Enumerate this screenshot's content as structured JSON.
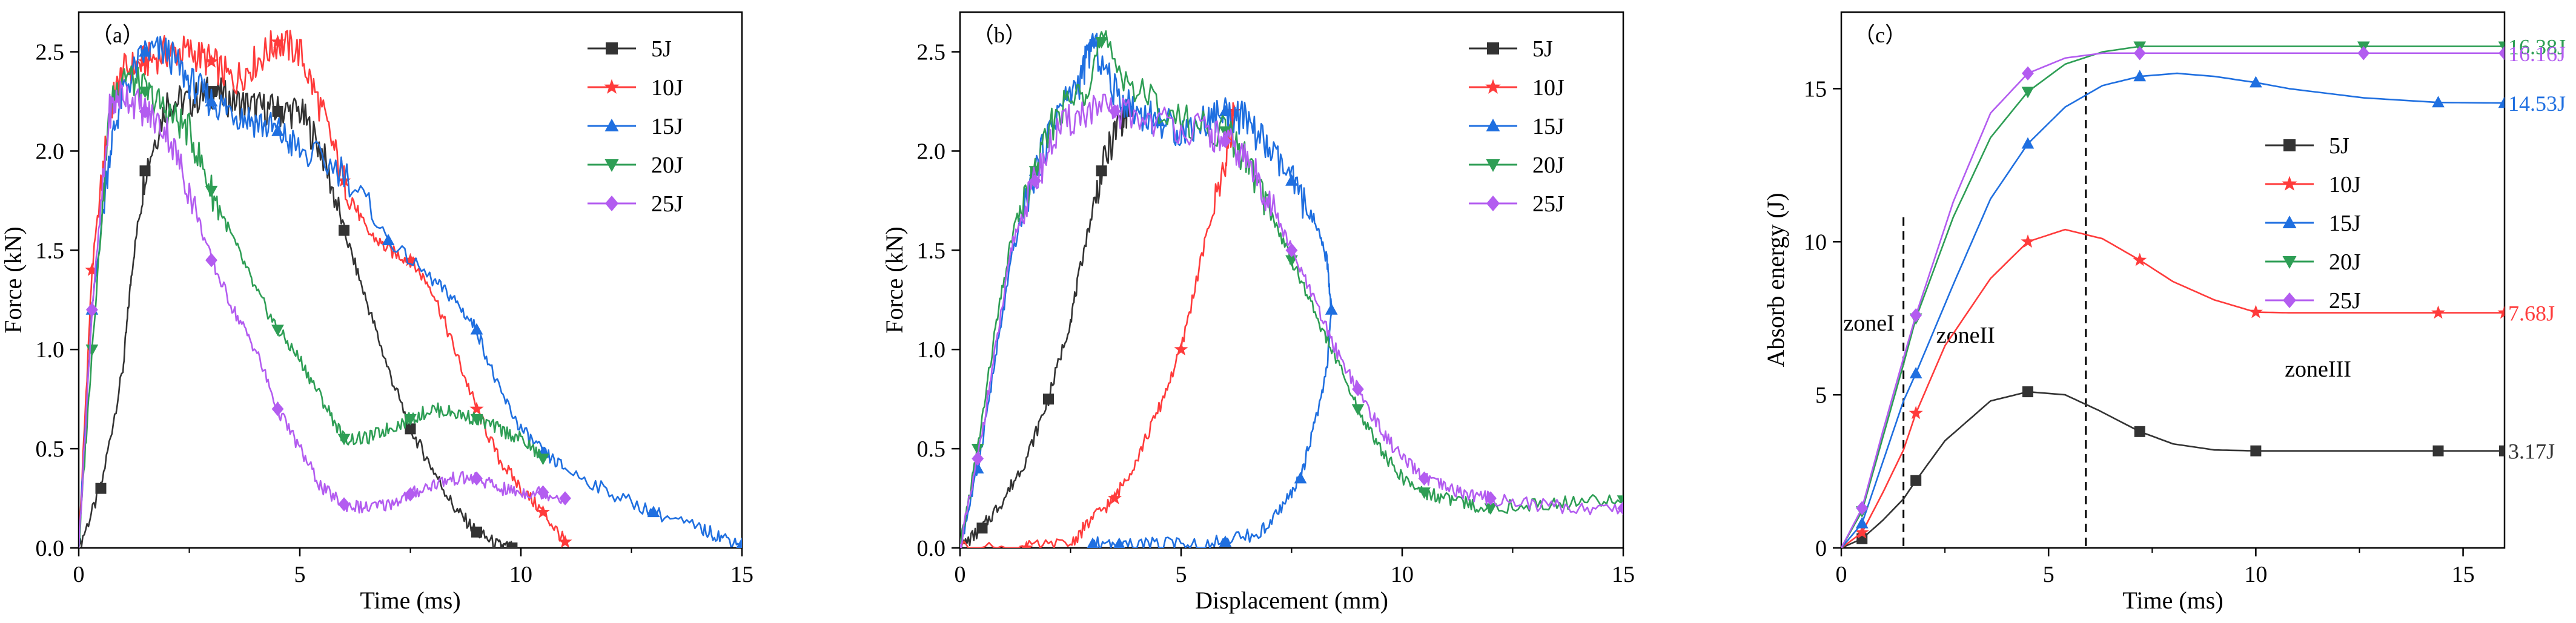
{
  "chart_data": [
    {
      "type": "line",
      "panel_label": "（a）",
      "xlabel": "Time (ms)",
      "ylabel": "Force (kN)",
      "xlim": [
        0,
        15
      ],
      "ylim": [
        0,
        2.7
      ],
      "xticks": [
        "0",
        "5",
        "10",
        "15"
      ],
      "yticks": [
        "0.0",
        "0.5",
        "1.0",
        "1.5",
        "2.0",
        "2.5"
      ],
      "legend_position": "top-right",
      "series": [
        {
          "name": "5J",
          "color": "#333333",
          "marker": "square",
          "x": [
            0,
            0.5,
            1.0,
            1.2,
            1.5,
            2.0,
            2.5,
            3.0,
            3.5,
            4.0,
            4.5,
            5.0,
            5.5,
            6.0,
            6.5,
            7.0,
            7.5,
            8.0,
            8.5,
            9.0,
            9.5,
            9.8
          ],
          "y": [
            0,
            0.3,
            0.9,
            1.4,
            1.9,
            2.25,
            2.25,
            2.3,
            2.25,
            2.22,
            2.2,
            2.2,
            2.0,
            1.6,
            1.25,
            0.9,
            0.6,
            0.4,
            0.2,
            0.08,
            0.01,
            0
          ]
        },
        {
          "name": "10J",
          "color": "#ff3b3b",
          "marker": "star",
          "x": [
            0,
            0.3,
            0.7,
            1.0,
            1.5,
            2.0,
            2.5,
            3.0,
            3.5,
            4.0,
            4.5,
            5.0,
            5.5,
            6.0,
            6.5,
            7.0,
            7.5,
            8.0,
            8.5,
            9.0,
            9.5,
            10.0,
            10.5,
            11.0
          ],
          "y": [
            0,
            1.4,
            2.2,
            2.4,
            2.45,
            2.5,
            2.5,
            2.45,
            2.35,
            2.45,
            2.55,
            2.5,
            2.2,
            1.85,
            1.6,
            1.5,
            1.45,
            1.3,
            1.0,
            0.7,
            0.45,
            0.3,
            0.18,
            0.03
          ]
        },
        {
          "name": "15J",
          "color": "#1f6fe0",
          "marker": "triangle-up",
          "x": [
            0,
            0.3,
            0.7,
            1.0,
            1.5,
            2.0,
            2.5,
            3.0,
            3.5,
            4.0,
            4.5,
            5.0,
            6.0,
            7.0,
            8.0,
            8.5,
            9.0,
            9.5,
            10.0,
            10.5,
            11.0,
            12.0,
            13.0,
            14.0,
            14.5,
            15.0
          ],
          "y": [
            0,
            1.2,
            2.0,
            2.3,
            2.5,
            2.5,
            2.35,
            2.25,
            2.2,
            2.15,
            2.1,
            2.0,
            1.9,
            1.55,
            1.35,
            1.25,
            1.1,
            0.8,
            0.6,
            0.48,
            0.4,
            0.28,
            0.18,
            0.1,
            0.06,
            0.02
          ]
        },
        {
          "name": "20J",
          "color": "#2e9e55",
          "marker": "triangle-down",
          "x": [
            0,
            0.3,
            0.7,
            1.0,
            1.5,
            2.0,
            2.5,
            3.0,
            3.5,
            4.0,
            4.5,
            5.0,
            5.5,
            6.0,
            6.5,
            7.0,
            7.5,
            8.0,
            8.5,
            9.0,
            9.5,
            10.0,
            10.5
          ],
          "y": [
            0,
            1.0,
            2.2,
            2.4,
            2.3,
            2.2,
            2.1,
            1.8,
            1.55,
            1.3,
            1.1,
            0.95,
            0.75,
            0.55,
            0.55,
            0.6,
            0.65,
            0.7,
            0.68,
            0.65,
            0.6,
            0.55,
            0.45
          ]
        },
        {
          "name": "25J",
          "color": "#b35cf0",
          "marker": "diamond",
          "x": [
            0,
            0.3,
            0.7,
            1.0,
            1.5,
            2.0,
            2.5,
            3.0,
            3.5,
            4.0,
            4.5,
            5.0,
            5.5,
            6.0,
            6.5,
            7.0,
            7.5,
            8.0,
            8.5,
            9.0,
            9.5,
            10.0,
            10.5,
            11.0
          ],
          "y": [
            0,
            1.2,
            2.2,
            2.3,
            2.2,
            2.1,
            1.8,
            1.45,
            1.2,
            1.0,
            0.7,
            0.5,
            0.3,
            0.22,
            0.2,
            0.22,
            0.27,
            0.32,
            0.35,
            0.35,
            0.3,
            0.28,
            0.28,
            0.25
          ]
        }
      ]
    },
    {
      "type": "line",
      "panel_label": "（b）",
      "xlabel": "Displacement (mm)",
      "ylabel": "Force (kN)",
      "xlim": [
        0,
        15
      ],
      "ylim": [
        0,
        2.7
      ],
      "xticks": [
        "0",
        "5",
        "10",
        "15"
      ],
      "yticks": [
        "0.0",
        "0.5",
        "1.0",
        "1.5",
        "2.0",
        "2.5"
      ],
      "legend_position": "top-right",
      "series": [
        {
          "name": "5J",
          "color": "#333333",
          "marker": "square",
          "x": [
            0,
            0.5,
            1.0,
            1.5,
            2.0,
            2.5,
            2.8,
            3.2,
            3.6,
            3.8
          ],
          "y": [
            0,
            0.1,
            0.25,
            0.45,
            0.75,
            1.15,
            1.5,
            1.9,
            2.15,
            2.2
          ]
        },
        {
          "name": "10J",
          "color": "#ff3b3b",
          "marker": "star",
          "x": [
            0,
            1.5,
            2.5,
            3.0,
            3.5,
            4.0,
            4.5,
            5.0,
            5.5,
            6.0,
            6.2
          ],
          "y": [
            0,
            0,
            0.02,
            0.15,
            0.25,
            0.45,
            0.7,
            1.0,
            1.5,
            1.95,
            2.2
          ]
        },
        {
          "name": "15J",
          "color": "#1f6fe0",
          "marker": "triangle-up",
          "x": [
            0,
            0.4,
            0.8,
            1.2,
            1.7,
            2.2,
            2.7,
            3.0,
            3.5,
            4.0,
            4.5,
            5.0,
            5.5,
            6.0,
            6.5,
            7.0,
            7.5,
            8.0,
            8.3,
            8.4,
            8.3,
            8.0,
            7.7,
            7.3,
            6.8,
            6.0,
            5.2,
            4.4,
            3.6,
            3.0
          ],
          "y": [
            0,
            0.4,
            0.95,
            1.5,
            1.9,
            2.2,
            2.35,
            2.55,
            2.3,
            2.2,
            2.15,
            2.1,
            2.15,
            2.2,
            2.15,
            2.0,
            1.85,
            1.65,
            1.45,
            1.2,
            0.9,
            0.6,
            0.35,
            0.2,
            0.08,
            0.03,
            0.02,
            0.02,
            0.02,
            0.02
          ]
        },
        {
          "name": "20J",
          "color": "#2e9e55",
          "marker": "triangle-down",
          "x": [
            0,
            0.4,
            0.8,
            1.2,
            1.7,
            2.2,
            2.8,
            3.2,
            4.0,
            5.0,
            6.0,
            6.5,
            7.0,
            7.5,
            8.0,
            8.5,
            9.0,
            9.5,
            10.0,
            10.5,
            11.0,
            11.5,
            12.0,
            13.0,
            14.0,
            15.0
          ],
          "y": [
            0,
            0.5,
            1.1,
            1.6,
            1.9,
            2.2,
            2.3,
            2.55,
            2.3,
            2.15,
            2.1,
            1.95,
            1.7,
            1.45,
            1.2,
            0.95,
            0.7,
            0.5,
            0.35,
            0.28,
            0.25,
            0.22,
            0.2,
            0.22,
            0.23,
            0.24
          ]
        },
        {
          "name": "25J",
          "color": "#b35cf0",
          "marker": "diamond",
          "x": [
            0,
            0.4,
            0.8,
            1.2,
            1.7,
            2.2,
            2.8,
            3.5,
            4.5,
            5.5,
            6.0,
            6.5,
            7.0,
            7.5,
            8.0,
            8.5,
            9.0,
            9.5,
            10.0,
            10.5,
            11.0,
            11.5,
            12.0,
            13.0,
            14.0,
            15.0
          ],
          "y": [
            0,
            0.45,
            1.0,
            1.55,
            1.85,
            2.1,
            2.2,
            2.2,
            2.15,
            2.1,
            2.05,
            1.95,
            1.75,
            1.5,
            1.25,
            1.0,
            0.8,
            0.6,
            0.45,
            0.35,
            0.3,
            0.27,
            0.25,
            0.22,
            0.2,
            0.2
          ]
        }
      ]
    },
    {
      "type": "line",
      "panel_label": "（c）",
      "xlabel": "Time (ms)",
      "ylabel": "Absorb energy (J)",
      "xlim": [
        0,
        16
      ],
      "ylim": [
        0,
        17.5
      ],
      "xticks": [
        "0",
        "5",
        "10",
        "15"
      ],
      "yticks": [
        "0",
        "5",
        "10",
        "15"
      ],
      "legend_position": "center-right",
      "dashed_lines_x": [
        1.5,
        5.9
      ],
      "zone_labels": [
        "zoneI",
        "zoneII",
        "zoneIII"
      ],
      "series": [
        {
          "name": "5J",
          "color": "#333333",
          "marker": "square",
          "end_label": "3.17J",
          "x": [
            0,
            0.5,
            1.0,
            1.5,
            1.8,
            2.5,
            3.6,
            4.5,
            5.4,
            6.2,
            7.2,
            8.0,
            9.0,
            10.0,
            10.8,
            12.6,
            14.4,
            16.0
          ],
          "y": [
            0,
            0.3,
            0.9,
            1.6,
            2.2,
            3.5,
            4.8,
            5.1,
            5.0,
            4.5,
            3.8,
            3.4,
            3.2,
            3.17,
            3.17,
            3.17,
            3.17,
            3.17
          ]
        },
        {
          "name": "10J",
          "color": "#ff3b3b",
          "marker": "star",
          "end_label": "7.68J",
          "x": [
            0,
            0.5,
            1.0,
            1.5,
            1.8,
            2.5,
            3.6,
            4.5,
            5.4,
            6.3,
            7.2,
            8.0,
            9.0,
            10.0,
            10.8,
            12.6,
            14.4,
            16.0
          ],
          "y": [
            0,
            0.5,
            1.8,
            3.2,
            4.4,
            6.6,
            8.8,
            10.0,
            10.4,
            10.1,
            9.4,
            8.7,
            8.1,
            7.7,
            7.68,
            7.68,
            7.68,
            7.68
          ]
        },
        {
          "name": "15J",
          "color": "#1f6fe0",
          "marker": "triangle-up",
          "end_label": "14.53J",
          "x": [
            0,
            0.5,
            1.0,
            1.5,
            1.8,
            2.7,
            3.6,
            4.5,
            5.4,
            6.3,
            7.2,
            8.1,
            9.0,
            10.0,
            10.8,
            12.6,
            14.4,
            16.0
          ],
          "y": [
            0,
            0.8,
            2.8,
            4.8,
            5.7,
            8.6,
            11.4,
            13.2,
            14.4,
            15.1,
            15.4,
            15.5,
            15.4,
            15.2,
            15.0,
            14.7,
            14.55,
            14.53
          ]
        },
        {
          "name": "20J",
          "color": "#2e9e55",
          "marker": "triangle-down",
          "end_label": "16.38J",
          "x": [
            0,
            0.5,
            1.0,
            1.5,
            1.8,
            2.7,
            3.6,
            4.5,
            5.4,
            6.3,
            7.2,
            9.0,
            10.8,
            12.6,
            14.4,
            16.0
          ],
          "y": [
            0,
            1.2,
            3.6,
            6.0,
            7.5,
            10.8,
            13.4,
            14.9,
            15.8,
            16.2,
            16.38,
            16.38,
            16.38,
            16.38,
            16.38,
            16.38
          ]
        },
        {
          "name": "25J",
          "color": "#b35cf0",
          "marker": "diamond",
          "end_label": "16.16J",
          "x": [
            0,
            0.5,
            1.0,
            1.5,
            1.8,
            2.7,
            3.6,
            4.5,
            5.4,
            6.3,
            7.2,
            9.0,
            10.8,
            12.6,
            14.4,
            16.0
          ],
          "y": [
            0,
            1.3,
            3.8,
            6.2,
            7.6,
            11.3,
            14.2,
            15.5,
            16.0,
            16.16,
            16.16,
            16.16,
            16.16,
            16.16,
            16.16,
            16.16
          ]
        }
      ]
    }
  ]
}
